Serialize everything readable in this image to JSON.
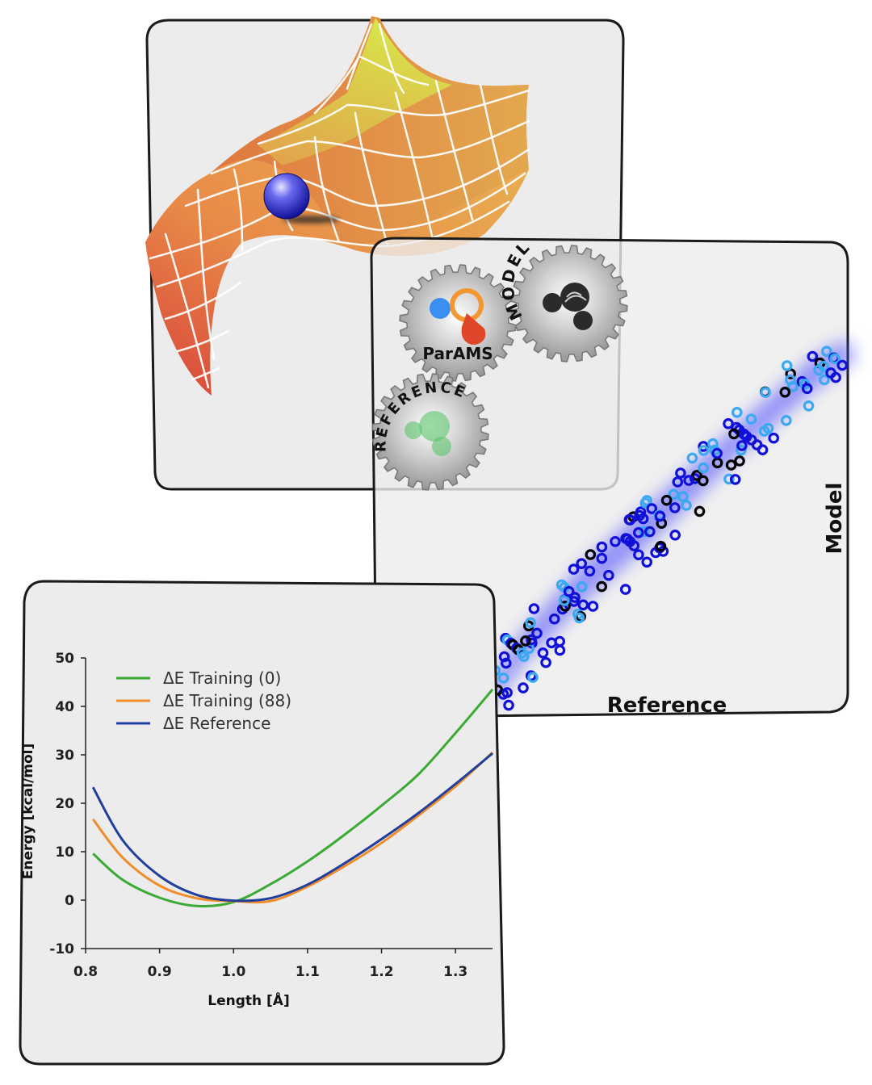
{
  "panels": {
    "parity": {
      "x_label": "Reference",
      "y_label": "Model",
      "colors": {
        "dark": "#000000",
        "mid": "#1010d8",
        "light": "#3ca8f0",
        "glow": "#3a3aff"
      }
    },
    "gears": {
      "params_label": "ParAMS",
      "model_label": "MODEL",
      "reference_label": "REFERENCE",
      "colors": {
        "gear": "#9a9a9a",
        "orange": "#f29733",
        "blue": "#3b8ff0",
        "red": "#e0472a",
        "green": "#5cc46a",
        "dark": "#2a2a2a"
      }
    },
    "energy_surface": {
      "colors": {
        "top": "#d8e048",
        "mid": "#e8a04a",
        "bottom": "#d84a3a",
        "ball": "#3a3ad8"
      }
    }
  },
  "chart_data": {
    "type": "line",
    "xlabel": "Length [Å]",
    "ylabel": "Energy [kcal/mol]",
    "xlim": [
      0.8,
      1.35
    ],
    "ylim": [
      -10,
      50
    ],
    "x_ticks": [
      "0.8",
      "0.9",
      "1.0",
      "1.1",
      "1.2",
      "1.3"
    ],
    "y_ticks": [
      "50",
      "40",
      "30",
      "20",
      "10",
      "0",
      "-10"
    ],
    "legend_position": "top-left",
    "grid": false,
    "x": [
      0.81,
      0.85,
      0.9,
      0.95,
      1.0,
      1.05,
      1.1,
      1.15,
      1.2,
      1.25,
      1.3,
      1.35
    ],
    "series": [
      {
        "name": "ΔE Training (0)",
        "color": "#3aaa35",
        "values": [
          9.6,
          4.2,
          0.5,
          -1.2,
          -0.4,
          3.3,
          8.0,
          13.5,
          19.5,
          26.0,
          34.5,
          43.5
        ]
      },
      {
        "name": "ΔE Training (88)",
        "color": "#f08c2a",
        "values": [
          16.7,
          8.8,
          3.0,
          0.4,
          -0.2,
          -0.2,
          2.8,
          7.0,
          11.8,
          17.5,
          23.5,
          30.5
        ]
      },
      {
        "name": "ΔE Reference",
        "color": "#1f3e9e",
        "values": [
          23.3,
          12.4,
          5.0,
          1.1,
          -0.1,
          0.4,
          3.2,
          7.6,
          12.6,
          18.0,
          24.0,
          30.3
        ]
      }
    ]
  }
}
